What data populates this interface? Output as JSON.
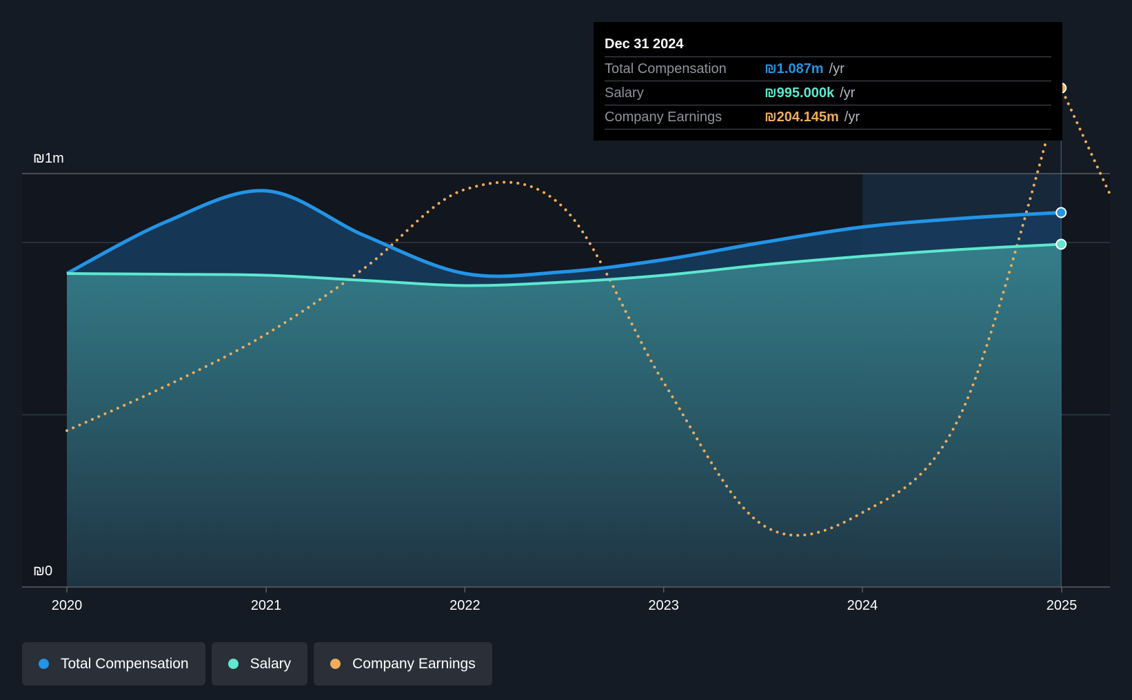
{
  "tooltip": {
    "date": "Dec 31 2024",
    "rows": [
      {
        "label": "Total Compensation",
        "value": "₪1.087m",
        "unit": "/yr",
        "color": "#2394e6"
      },
      {
        "label": "Salary",
        "value": "₪995.000k",
        "unit": "/yr",
        "color": "#5de8cf"
      },
      {
        "label": "Company Earnings",
        "value": "₪204.145m",
        "unit": "/yr",
        "color": "#f0ad5a"
      }
    ]
  },
  "legend": [
    {
      "label": "Total Compensation",
      "color": "#2394e6"
    },
    {
      "label": "Salary",
      "color": "#5de8cf"
    },
    {
      "label": "Company Earnings",
      "color": "#f0ad5a"
    }
  ],
  "chart_data": {
    "type": "area",
    "y_tick_labels": [
      "₪1m",
      "₪0"
    ],
    "ylim": [
      0,
      1200000
    ],
    "x_tick_labels": [
      "2020",
      "2021",
      "2022",
      "2023",
      "2024",
      "2025"
    ],
    "xlim": [
      "2019-10-15",
      "2025-03-15"
    ],
    "grid": true,
    "legend_position": "bottom-left",
    "series": [
      {
        "name": "Total Compensation",
        "color": "#2394e6",
        "style": "solid-area",
        "x": [
          "2020-01-01",
          "2020-07-01",
          "2021-01-01",
          "2021-07-01",
          "2022-01-01",
          "2022-07-01",
          "2023-01-01",
          "2023-07-01",
          "2024-01-01",
          "2024-07-01",
          "2024-12-31"
        ],
        "y": [
          910000,
          1060000,
          1150000,
          1020000,
          910000,
          915000,
          950000,
          1000000,
          1045000,
          1070000,
          1087000
        ]
      },
      {
        "name": "Salary",
        "color": "#5de8cf",
        "style": "solid-area",
        "x": [
          "2020-01-01",
          "2020-07-01",
          "2021-01-01",
          "2021-07-01",
          "2022-01-01",
          "2022-07-01",
          "2023-01-01",
          "2023-07-01",
          "2024-01-01",
          "2024-07-01",
          "2024-12-31"
        ],
        "y": [
          910000,
          908000,
          905000,
          890000,
          875000,
          885000,
          905000,
          935000,
          960000,
          980000,
          995000
        ]
      },
      {
        "name": "Company Earnings",
        "color": "#f0ad5a",
        "style": "dotted",
        "axis": "secondary",
        "x": [
          "2020-01-01",
          "2020-07-01",
          "2021-01-01",
          "2021-07-01",
          "2022-01-01",
          "2022-07-01",
          "2023-01-01",
          "2023-07-01",
          "2024-01-01",
          "2024-07-01",
          "2024-12-31"
        ],
        "y": [
          -80,
          -43,
          0,
          55,
          120,
          105,
          -40,
          -158,
          -148,
          -65,
          204.145
        ]
      }
    ]
  }
}
